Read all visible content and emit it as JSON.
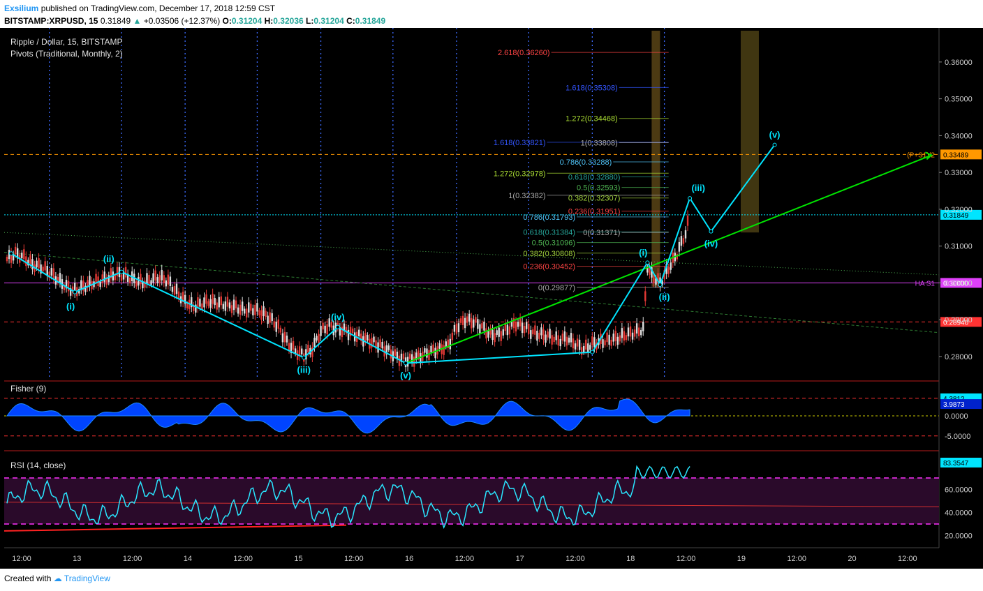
{
  "header": {
    "author": "Exsilium",
    "published_text": "published on TradingView.com, December 17, 2018 12:59 CST",
    "symbol": "BITSTAMP:XRPUSD, 15",
    "last": "0.31849",
    "change": "+0.03506 (+12.37%)",
    "ohlc_o_label": "O:",
    "ohlc_o": "0.31204",
    "ohlc_h_label": "H:",
    "ohlc_h": "0.32036",
    "ohlc_l_label": "L:",
    "ohlc_l": "0.31204",
    "ohlc_c_label": "C:",
    "ohlc_c": "0.31849"
  },
  "footer": {
    "created_with": "Created with",
    "brand": "TradingView"
  },
  "colors": {
    "background": "#000000",
    "wave": "#00e5ff",
    "trend": "#00e600",
    "pivot": "#e040fb",
    "resist": "#ff3333",
    "orange": "#ff9800",
    "price": "#00e5ff",
    "fisher_fill": "#0044ff",
    "rsi_line": "#29e6ff",
    "rsi_band": "#ff33ff"
  },
  "chart_data": [
    {
      "type": "line",
      "title": "Ripple / Dollar, 15, BITSTAMP",
      "subtitle": "Pivots (Traditional, Monthly, 2)",
      "x_ticks": [
        "12:00",
        "13",
        "12:00",
        "14",
        "12:00",
        "15",
        "12:00",
        "16",
        "12:00",
        "17",
        "12:00",
        "18",
        "12:00",
        "19",
        "12:00",
        "20",
        "12:00"
      ],
      "y_ticks": [
        "0.36000",
        "0.35000",
        "0.34000",
        "0.33000",
        "0.32000",
        "0.31000",
        "0.30000",
        "0.29000",
        "0.28000"
      ],
      "ylim": [
        0.2745,
        0.3685
      ],
      "levels": [
        {
          "name": "(P+S1)/2",
          "value": 0.33489,
          "color": "#ff9800",
          "badge": "0.33489"
        },
        {
          "name": "HA S1",
          "value": 0.3,
          "color": "#e040fb",
          "badge": "0.30000"
        },
        {
          "name": "",
          "value": 0.2894,
          "color": "#ff3333",
          "badge": "0.28940"
        },
        {
          "name": "",
          "value": 0.31849,
          "color": "#00e5ff",
          "badge": "0.31849"
        }
      ],
      "wave_labels": [
        "(i)",
        "(ii)",
        "(iii)",
        "(iv)",
        "(v)",
        "(i)",
        "(ii)",
        "(iii)",
        "(iv)",
        "(v)"
      ],
      "wave_points": [
        {
          "t": 0.5,
          "v": 0.308
        },
        {
          "t": 8,
          "v": 0.2975
        },
        {
          "t": 13.5,
          "v": 0.303
        },
        {
          "t": 35,
          "v": 0.2797
        },
        {
          "t": 39,
          "v": 0.288
        },
        {
          "t": 47,
          "v": 0.2782
        },
        {
          "t": 69,
          "v": 0.2812
        },
        {
          "t": 75.5,
          "v": 0.3055
        },
        {
          "t": 77,
          "v": 0.2995
        },
        {
          "t": 80.5,
          "v": 0.323
        },
        {
          "t": 83,
          "v": 0.314
        },
        {
          "t": 90.5,
          "v": 0.3375
        }
      ],
      "fib_labels": [
        {
          "text": "2.618(0.36260)",
          "value": 0.3626,
          "color": "#ff4444"
        },
        {
          "text": "1.618(0.35308)",
          "value": 0.35308,
          "color": "#3355ff"
        },
        {
          "text": "1.272(0.34468)",
          "value": 0.34468,
          "color": "#aadd33"
        },
        {
          "text": "1.618(0.33821)",
          "value": 0.33821,
          "color": "#3355ff"
        },
        {
          "text": "1(0.33808)",
          "value": 0.33808,
          "color": "#aaaaaa"
        },
        {
          "text": "0.786(0.33288)",
          "value": 0.33288,
          "color": "#4fc3f7"
        },
        {
          "text": "1.272(0.32978)",
          "value": 0.32978,
          "color": "#aadd33"
        },
        {
          "text": "0.618(0.32880)",
          "value": 0.3288,
          "color": "#26a69a"
        },
        {
          "text": "0.5(0.32593)",
          "value": 0.32593,
          "color": "#4caf50"
        },
        {
          "text": "1(0.32382)",
          "value": 0.32382,
          "color": "#aaaaaa"
        },
        {
          "text": "0.382(0.32307)",
          "value": 0.32307,
          "color": "#a1d23c"
        },
        {
          "text": "0.236(0.31951)",
          "value": 0.31951,
          "color": "#ff4444"
        },
        {
          "text": "0.786(0.31793)",
          "value": 0.31793,
          "color": "#4fc3f7"
        },
        {
          "text": "0.618(0.31384)",
          "value": 0.31384,
          "color": "#26a69a"
        },
        {
          "text": "0(0.31371)",
          "value": 0.31371,
          "color": "#aaaaaa"
        },
        {
          "text": "0.5(0.31096)",
          "value": 0.31096,
          "color": "#4caf50"
        },
        {
          "text": "0.382(0.30808)",
          "value": 0.30808,
          "color": "#a1d23c"
        },
        {
          "text": "0.236(0.30452)",
          "value": 0.30452,
          "color": "#ff4444"
        },
        {
          "text": "0(0.29877)",
          "value": 0.29877,
          "color": "#aaaaaa"
        }
      ],
      "series": [
        {
          "name": "",
          "values": [
            [
              0,
              0.3065
            ],
            [
              1,
              0.308
            ],
            [
              2,
              0.307
            ],
            [
              3,
              0.305
            ],
            [
              4,
              0.3045
            ],
            [
              5,
              0.303
            ],
            [
              6,
              0.301
            ],
            [
              7,
              0.299
            ],
            [
              8,
              0.2978
            ],
            [
              9,
              0.299
            ],
            [
              10,
              0.3
            ],
            [
              11,
              0.3005
            ],
            [
              12,
              0.3015
            ],
            [
              13,
              0.3025
            ],
            [
              14,
              0.302
            ],
            [
              15,
              0.3008
            ],
            [
              16,
              0.3
            ],
            [
              17,
              0.301
            ],
            [
              18,
              0.3015
            ],
            [
              19,
              0.3005
            ],
            [
              20,
              0.2975
            ],
            [
              21,
              0.295
            ],
            [
              22,
              0.2935
            ],
            [
              23,
              0.2945
            ],
            [
              24,
              0.295
            ],
            [
              25,
              0.2945
            ],
            [
              26,
              0.294
            ],
            [
              27,
              0.2935
            ],
            [
              28,
              0.2925
            ],
            [
              29,
              0.293
            ],
            [
              30,
              0.292
            ],
            [
              31,
              0.2905
            ],
            [
              32,
              0.288
            ],
            [
              33,
              0.284
            ],
            [
              34,
              0.2815
            ],
            [
              35,
              0.2805
            ],
            [
              36,
              0.282
            ],
            [
              37,
              0.287
            ],
            [
              38,
              0.2885
            ],
            [
              39,
              0.2875
            ],
            [
              40,
              0.287
            ],
            [
              41,
              0.286
            ],
            [
              42,
              0.285
            ],
            [
              43,
              0.284
            ],
            [
              44,
              0.283
            ],
            [
              45,
              0.2815
            ],
            [
              46,
              0.28
            ],
            [
              47,
              0.279
            ],
            [
              48,
              0.2795
            ],
            [
              49,
              0.2805
            ],
            [
              50,
              0.2815
            ],
            [
              51,
              0.282
            ],
            [
              52,
              0.283
            ],
            [
              53,
              0.288
            ],
            [
              54,
              0.29
            ],
            [
              55,
              0.2895
            ],
            [
              56,
              0.288
            ],
            [
              57,
              0.286
            ],
            [
              58,
              0.286
            ],
            [
              59,
              0.2875
            ],
            [
              60,
              0.289
            ],
            [
              61,
              0.288
            ],
            [
              62,
              0.2865
            ],
            [
              63,
              0.286
            ],
            [
              64,
              0.2855
            ],
            [
              65,
              0.2845
            ],
            [
              66,
              0.285
            ],
            [
              67,
              0.2835
            ],
            [
              68,
              0.282
            ],
            [
              69,
              0.2835
            ],
            [
              70,
              0.284
            ],
            [
              71,
              0.2845
            ],
            [
              72,
              0.285
            ],
            [
              73,
              0.286
            ],
            [
              74,
              0.2865
            ],
            [
              75,
              0.2875
            ],
            [
              75.5,
              0.3045
            ],
            [
              76,
              0.302
            ],
            [
              77,
              0.3
            ],
            [
              78,
              0.304
            ],
            [
              79,
              0.308
            ],
            [
              80,
              0.3135
            ],
            [
              80.5,
              0.3185
            ]
          ]
        }
      ]
    },
    {
      "type": "area",
      "title": "Fisher (9)",
      "y_ticks": [
        "0.0000",
        "-5.0000"
      ],
      "badges": [
        "4.3812",
        "3.9873"
      ],
      "ylim": [
        -8,
        8
      ],
      "levels": [
        4.3812,
        0,
        -5
      ]
    },
    {
      "type": "line",
      "title": "RSI (14, close)",
      "y_ticks": [
        "60.0000",
        "40.0000",
        "20.0000"
      ],
      "badge": "83.3547",
      "ylim": [
        10,
        90
      ],
      "bands": [
        70,
        30
      ]
    }
  ]
}
